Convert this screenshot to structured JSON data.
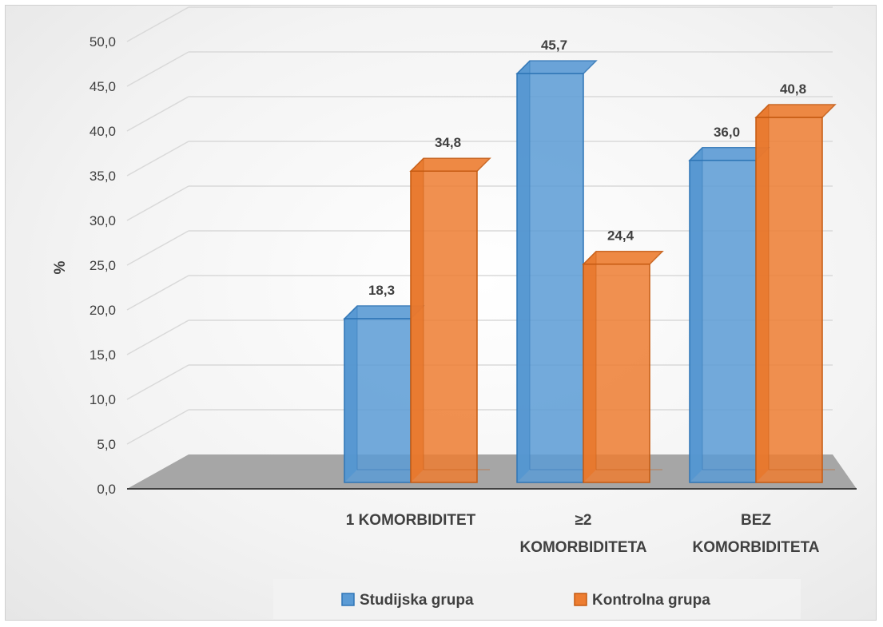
{
  "chart_data": {
    "type": "bar",
    "categories": [
      "1 KOMORBIDITET",
      "≥2 KOMORBIDITETA",
      "BEZ KOMORBIDITETA"
    ],
    "category_lines": [
      [
        "1 KOMORBIDITET"
      ],
      [
        "≥2",
        "KOMORBIDITETA"
      ],
      [
        "BEZ",
        "KOMORBIDITETA"
      ]
    ],
    "series": [
      {
        "name": "Studijska grupa",
        "values": [
          18.3,
          45.7,
          36.0
        ],
        "labels": [
          "18,3",
          "45,7",
          "36,0"
        ],
        "color": "#5b9bd5"
      },
      {
        "name": "Kontrolna grupa",
        "values": [
          34.8,
          24.4,
          40.8
        ],
        "labels": [
          "34,8",
          "24,4",
          "40,8"
        ],
        "color": "#ed7d31"
      }
    ],
    "yticks": [
      "0,0",
      "5,0",
      "10,0",
      "15,0",
      "20,0",
      "25,0",
      "30,0",
      "35,0",
      "40,0",
      "45,0",
      "50,0"
    ],
    "ylabel": "%",
    "ylim": [
      0,
      50
    ],
    "grid": true,
    "legend": "bottom",
    "colors": {
      "blue": "#5b9bd5",
      "blue_dark": "#2e75b6",
      "orange": "#ed7d31",
      "orange_dark": "#c55a11",
      "floor": "#a6a6a6"
    }
  }
}
